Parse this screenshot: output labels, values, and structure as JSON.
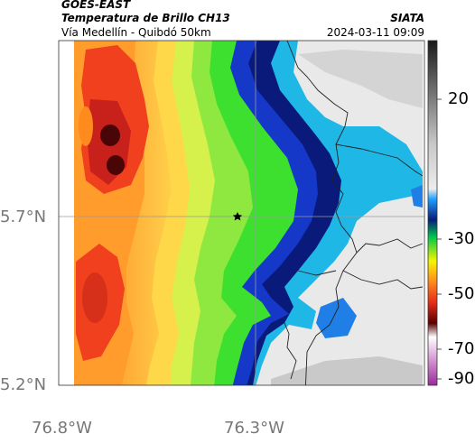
{
  "header": {
    "source": "GOES-EAST",
    "product": "Temperatura de Brillo CH13",
    "region": "Vía Medellín - Quibdó 50km",
    "brand": "SIATA",
    "datetime": "2024-03-11 09:09"
  },
  "axes": {
    "lat_labels": [
      "5.7°N",
      "5.2°N"
    ],
    "lon_labels": [
      "76.8°W",
      "76.3°W"
    ]
  },
  "colorbar": {
    "tick_labels": [
      "20",
      "-30",
      "-50",
      "-70",
      "-90"
    ],
    "stops": [
      "#1a1a1a",
      "#4d4d4d",
      "#a6a6a6",
      "#e6e6e6",
      "#1e9eff",
      "#0a1a7a",
      "#00c84a",
      "#f5f500",
      "#ff8a1e",
      "#e52d1a",
      "#5a0000",
      "#ffffff",
      "#9a2a9a"
    ]
  },
  "map": {
    "marker": "star-marker",
    "colors": {
      "warm_gray": "#e9e9e9",
      "cyan": "#1fb7e6",
      "deep_blue": "#0a1a7a",
      "green": "#3ee02f",
      "yellow_green": "#c8f04a",
      "yellow": "#f5f06a",
      "orange": "#ffb030",
      "red": "#f0401e",
      "dark_red": "#4a0606"
    }
  }
}
